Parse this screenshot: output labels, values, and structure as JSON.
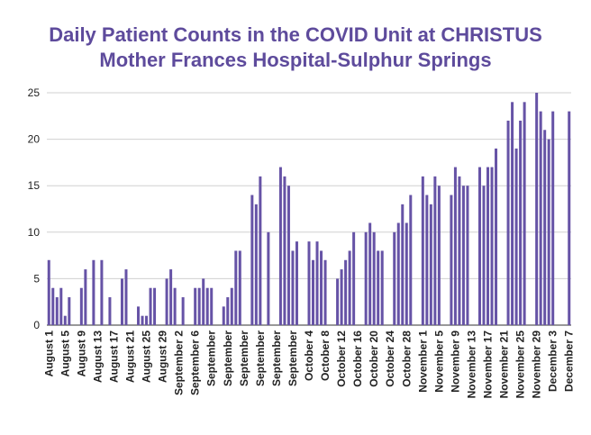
{
  "chart_data": {
    "type": "bar",
    "title": [
      "Daily Patient Counts in the COVID Unit at CHRISTUS",
      "Mother Frances Hospital-Sulphur Springs"
    ],
    "color": "#6653a6",
    "grid": true,
    "ylim": [
      0,
      25
    ],
    "yticks": [
      0,
      5,
      10,
      15,
      20,
      25
    ],
    "categories": [
      "August 1",
      null,
      null,
      null,
      "August 5",
      null,
      null,
      null,
      "August 9",
      null,
      null,
      null,
      "August 13",
      null,
      null,
      null,
      "August 17",
      null,
      null,
      null,
      "August 21",
      null,
      null,
      null,
      "August 25",
      null,
      null,
      null,
      "August 29",
      null,
      null,
      null,
      "September 2",
      null,
      null,
      null,
      "September 6",
      null,
      null,
      null,
      "September",
      null,
      null,
      null,
      "September",
      null,
      null,
      null,
      "September",
      null,
      null,
      null,
      "September",
      null,
      null,
      null,
      "September",
      null,
      null,
      null,
      "September",
      null,
      null,
      null,
      "October 4",
      null,
      null,
      null,
      "October 8",
      null,
      null,
      null,
      "October 12",
      null,
      null,
      null,
      "October 16",
      null,
      null,
      null,
      "October 20",
      null,
      null,
      null,
      "October 24",
      null,
      null,
      null,
      "October 28",
      null,
      null,
      null,
      "November 1",
      null,
      null,
      null,
      "November 5",
      null,
      null,
      null,
      "November 9",
      null,
      null,
      null,
      "November 13",
      null,
      null,
      null,
      "November 17",
      null,
      null,
      null,
      "November 21",
      null,
      null,
      null,
      "November 25",
      null,
      null,
      null,
      "November 29",
      null,
      null,
      null,
      "December 3",
      null,
      null,
      null,
      "December 7"
    ],
    "values": [
      7,
      4,
      3,
      4,
      1,
      3,
      0,
      0,
      4,
      6,
      0,
      7,
      0,
      7,
      0,
      3,
      0,
      0,
      5,
      6,
      0,
      0,
      2,
      1,
      1,
      4,
      4,
      0,
      0,
      5,
      6,
      4,
      0,
      3,
      0,
      0,
      4,
      4,
      5,
      4,
      4,
      0,
      0,
      2,
      3,
      4,
      8,
      8,
      0,
      0,
      14,
      13,
      16,
      0,
      10,
      0,
      0,
      17,
      16,
      15,
      8,
      9,
      0,
      0,
      9,
      7,
      9,
      8,
      7,
      0,
      0,
      5,
      6,
      7,
      8,
      10,
      0,
      0,
      10,
      11,
      10,
      8,
      8,
      0,
      0,
      10,
      11,
      13,
      11,
      14,
      0,
      0,
      16,
      14,
      13,
      16,
      15,
      0,
      0,
      14,
      17,
      16,
      15,
      15,
      0,
      0,
      17,
      15,
      17,
      17,
      19,
      0,
      0,
      22,
      24,
      19,
      22,
      24,
      0,
      0,
      25,
      23,
      21,
      20,
      23,
      0,
      0,
      0,
      23
    ]
  }
}
